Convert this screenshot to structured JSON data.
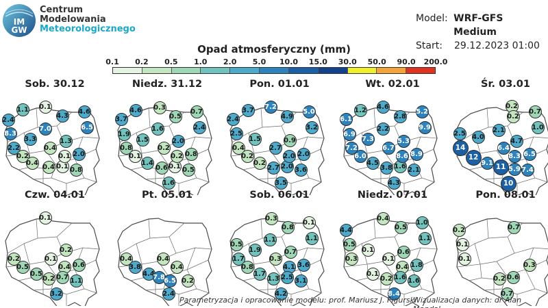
{
  "header": {
    "org_lines": [
      "Centrum",
      "Modelowania",
      "Meteorologicznego"
    ],
    "logo_text": [
      "IM",
      "GW"
    ],
    "model_label": "Model:",
    "model_value": "WRF-GFS Medium",
    "start_label": "Start:",
    "start_value": "29.12.2023 01:00"
  },
  "title": "Opad atmosferyczny (mm)",
  "scale": {
    "ticks": [
      "0.1",
      "0.2",
      "0.5",
      "1.0",
      "2.0",
      "5.0",
      "10.0",
      "15.0",
      "30.0",
      "50.0",
      "90.0",
      "200.0"
    ],
    "colors": [
      "#e4f3e2",
      "#c3e6c1",
      "#9fd6b5",
      "#72c3bd",
      "#4eaacb",
      "#2f83bd",
      "#1b5fa5",
      "#12428a",
      "#eef02c",
      "#f2a33a",
      "#e0331f"
    ]
  },
  "colors": {
    "map_fill": "#ffffff",
    "map_border": "#4a4a4a"
  },
  "panels": [
    {
      "day": "Sob. 30.12",
      "stations": [
        {
          "v": "1.1",
          "x": 33,
          "y": 43
        },
        {
          "v": "0.1",
          "x": 66,
          "y": 39
        },
        {
          "v": "4.3",
          "x": 91,
          "y": 52
        },
        {
          "v": "4.6",
          "x": 123,
          "y": 46
        },
        {
          "v": "2.4",
          "x": 12,
          "y": 58
        },
        {
          "v": "6.5",
          "x": 127,
          "y": 69
        },
        {
          "v": "8.3",
          "x": 15,
          "y": 78
        },
        {
          "v": "3.3",
          "x": 44,
          "y": 86
        },
        {
          "v": "7.0",
          "x": 66,
          "y": 71
        },
        {
          "v": "1.3",
          "x": 96,
          "y": 89
        },
        {
          "v": "2.2",
          "x": 20,
          "y": 99
        },
        {
          "v": "0.4",
          "x": 73,
          "y": 99
        },
        {
          "v": "2.0",
          "x": 115,
          "y": 108
        },
        {
          "v": "0.2",
          "x": 33,
          "y": 111
        },
        {
          "v": "0.4",
          "x": 47,
          "y": 121
        },
        {
          "v": "0.4",
          "x": 71,
          "y": 127
        },
        {
          "v": "0.1",
          "x": 91,
          "y": 126
        },
        {
          "v": "0.8",
          "x": 111,
          "y": 131
        },
        {
          "v": "0.1",
          "x": 94,
          "y": 111
        }
      ]
    },
    {
      "day": "Niedz. 31.12",
      "stations": [
        {
          "v": "4.6",
          "x": 34,
          "y": 44
        },
        {
          "v": "0.3",
          "x": 69,
          "y": 40
        },
        {
          "v": "0.5",
          "x": 92,
          "y": 53
        },
        {
          "v": "0.7",
          "x": 123,
          "y": 46
        },
        {
          "v": "3.7",
          "x": 13,
          "y": 57
        },
        {
          "v": "2.4",
          "x": 127,
          "y": 69
        },
        {
          "v": "1.9",
          "x": 17,
          "y": 79
        },
        {
          "v": "1.5",
          "x": 44,
          "y": 87
        },
        {
          "v": "1.6",
          "x": 66,
          "y": 71
        },
        {
          "v": "2.0",
          "x": 96,
          "y": 89
        },
        {
          "v": "0.8",
          "x": 20,
          "y": 99
        },
        {
          "v": "0.2",
          "x": 75,
          "y": 99
        },
        {
          "v": "0.8",
          "x": 115,
          "y": 108
        },
        {
          "v": "0.1",
          "x": 33,
          "y": 111
        },
        {
          "v": "1.4",
          "x": 51,
          "y": 121
        },
        {
          "v": "0.6",
          "x": 72,
          "y": 128
        },
        {
          "v": "0.1",
          "x": 91,
          "y": 126
        },
        {
          "v": "0.5",
          "x": 111,
          "y": 131
        },
        {
          "v": "1.6",
          "x": 82,
          "y": 150
        },
        {
          "v": "0.2",
          "x": 94,
          "y": 111
        }
      ]
    },
    {
      "day": "Pon. 01.01",
      "stations": [
        {
          "v": "3.7",
          "x": 34,
          "y": 44
        },
        {
          "v": "7.2",
          "x": 67,
          "y": 39
        },
        {
          "v": "4.9",
          "x": 91,
          "y": 53
        },
        {
          "v": "5.0",
          "x": 123,
          "y": 46
        },
        {
          "v": "2.4",
          "x": 12,
          "y": 57
        },
        {
          "v": "3.2",
          "x": 127,
          "y": 69
        },
        {
          "v": "2.5",
          "x": 17,
          "y": 78
        },
        {
          "v": "1.5",
          "x": 44,
          "y": 86
        },
        {
          "v": "0.9",
          "x": 95,
          "y": 88
        },
        {
          "v": "0.4",
          "x": 20,
          "y": 99
        },
        {
          "v": "2.7",
          "x": 74,
          "y": 99
        },
        {
          "v": "2.0",
          "x": 115,
          "y": 108
        },
        {
          "v": "0.2",
          "x": 33,
          "y": 111
        },
        {
          "v": "0.2",
          "x": 51,
          "y": 121
        },
        {
          "v": "2.7",
          "x": 71,
          "y": 128
        },
        {
          "v": "2.0",
          "x": 91,
          "y": 126
        },
        {
          "v": "3.6",
          "x": 111,
          "y": 131
        },
        {
          "v": "3.5",
          "x": 82,
          "y": 150
        },
        {
          "v": "2.0",
          "x": 94,
          "y": 111
        }
      ]
    },
    {
      "day": "Wt. 02.01",
      "stations": [
        {
          "v": "1.2",
          "x": 33,
          "y": 44
        },
        {
          "v": "4.6",
          "x": 66,
          "y": 39
        },
        {
          "v": "2.8",
          "x": 91,
          "y": 53
        },
        {
          "v": "5.2",
          "x": 123,
          "y": 46
        },
        {
          "v": "6.1",
          "x": 12,
          "y": 57
        },
        {
          "v": "9.9",
          "x": 127,
          "y": 69
        },
        {
          "v": "6.9",
          "x": 17,
          "y": 79
        },
        {
          "v": "7.3",
          "x": 44,
          "y": 86
        },
        {
          "v": "2.2",
          "x": 66,
          "y": 71
        },
        {
          "v": "5.3",
          "x": 96,
          "y": 89
        },
        {
          "v": "7.2",
          "x": 20,
          "y": 99
        },
        {
          "v": "6.7",
          "x": 74,
          "y": 99
        },
        {
          "v": "8.9",
          "x": 115,
          "y": 108
        },
        {
          "v": "6.0",
          "x": 33,
          "y": 111
        },
        {
          "v": "4.5",
          "x": 51,
          "y": 121
        },
        {
          "v": "3.8",
          "x": 71,
          "y": 128
        },
        {
          "v": "1.6",
          "x": 91,
          "y": 126
        },
        {
          "v": "2.1",
          "x": 111,
          "y": 131
        },
        {
          "v": "4.3",
          "x": 82,
          "y": 150
        },
        {
          "v": "8.6",
          "x": 94,
          "y": 111
        }
      ]
    },
    {
      "day": "Śr. 03.01",
      "stations": [
        {
          "v": "0.2",
          "x": 89,
          "y": 38
        },
        {
          "v": "0.7",
          "x": 123,
          "y": 46
        },
        {
          "v": "0.2",
          "x": 91,
          "y": 53
        },
        {
          "v": "1.0",
          "x": 127,
          "y": 69
        },
        {
          "v": "2.5",
          "x": 13,
          "y": 78
        },
        {
          "v": "4.0",
          "x": 40,
          "y": 83
        },
        {
          "v": "2.1",
          "x": 70,
          "y": 73
        },
        {
          "v": "4.7",
          "x": 96,
          "y": 89
        },
        {
          "v": "14",
          "x": 14,
          "y": 99,
          "big": true
        },
        {
          "v": "6.4",
          "x": 77,
          "y": 99
        },
        {
          "v": "12",
          "x": 33,
          "y": 113,
          "big": true
        },
        {
          "v": "8.3",
          "x": 93,
          "y": 111
        },
        {
          "v": "6.5",
          "x": 115,
          "y": 108
        },
        {
          "v": "9.1",
          "x": 53,
          "y": 121
        },
        {
          "v": "11",
          "x": 73,
          "y": 127,
          "big": true
        },
        {
          "v": "5.9",
          "x": 93,
          "y": 130
        },
        {
          "v": "7.4",
          "x": 112,
          "y": 131
        },
        {
          "v": "10",
          "x": 84,
          "y": 151,
          "big": true
        }
      ]
    },
    {
      "day": "Czw. 04.01",
      "stations": [
        {
          "v": "0.1",
          "x": 66,
          "y": 39
        },
        {
          "v": "0.2",
          "x": 96,
          "y": 86
        },
        {
          "v": "0.2",
          "x": 20,
          "y": 99
        },
        {
          "v": "0.1",
          "x": 74,
          "y": 99
        },
        {
          "v": "0.5",
          "x": 33,
          "y": 111
        },
        {
          "v": "0.6",
          "x": 115,
          "y": 108
        },
        {
          "v": "0.4",
          "x": 94,
          "y": 111
        },
        {
          "v": "0.5",
          "x": 53,
          "y": 121
        },
        {
          "v": "0.2",
          "x": 71,
          "y": 128
        },
        {
          "v": "0.7",
          "x": 91,
          "y": 126
        },
        {
          "v": "1.1",
          "x": 111,
          "y": 131
        },
        {
          "v": "3.2",
          "x": 82,
          "y": 150
        }
      ]
    },
    {
      "day": "Pt. 05.01",
      "stations": [
        {
          "v": "0.4",
          "x": 20,
          "y": 99
        },
        {
          "v": "0.4",
          "x": 74,
          "y": 99
        },
        {
          "v": "3.8",
          "x": 33,
          "y": 111
        },
        {
          "v": "0.4",
          "x": 94,
          "y": 111
        },
        {
          "v": "4.4",
          "x": 53,
          "y": 121
        },
        {
          "v": "7.8",
          "x": 68,
          "y": 126
        },
        {
          "v": "6.5",
          "x": 84,
          "y": 131
        },
        {
          "v": "0.2",
          "x": 110,
          "y": 131
        },
        {
          "v": "2.4",
          "x": 82,
          "y": 150
        }
      ]
    },
    {
      "day": "Sob. 06.01",
      "stations": [
        {
          "v": "0.3",
          "x": 68,
          "y": 40
        },
        {
          "v": "0.8",
          "x": 92,
          "y": 53
        },
        {
          "v": "0.1",
          "x": 123,
          "y": 46
        },
        {
          "v": "1.1",
          "x": 66,
          "y": 71
        },
        {
          "v": "1.1",
          "x": 127,
          "y": 69
        },
        {
          "v": "0.5",
          "x": 17,
          "y": 78
        },
        {
          "v": "1.9",
          "x": 44,
          "y": 86
        },
        {
          "v": "0.7",
          "x": 96,
          "y": 89
        },
        {
          "v": "1.7",
          "x": 20,
          "y": 99
        },
        {
          "v": "0.3",
          "x": 74,
          "y": 99
        },
        {
          "v": "3.6",
          "x": 115,
          "y": 108
        },
        {
          "v": "0.8",
          "x": 33,
          "y": 111
        },
        {
          "v": "4.1",
          "x": 94,
          "y": 111
        },
        {
          "v": "1.7",
          "x": 51,
          "y": 121
        },
        {
          "v": "1.3",
          "x": 71,
          "y": 128
        },
        {
          "v": "2.5",
          "x": 91,
          "y": 126
        },
        {
          "v": "3.1",
          "x": 111,
          "y": 131
        },
        {
          "v": "4.2",
          "x": 82,
          "y": 150
        }
      ]
    },
    {
      "day": "Niedz. 07.01",
      "stations": [
        {
          "v": "4.4",
          "x": 12,
          "y": 57
        },
        {
          "v": "0.4",
          "x": 66,
          "y": 40
        },
        {
          "v": "1.0",
          "x": 123,
          "y": 46
        },
        {
          "v": "0.5",
          "x": 92,
          "y": 53
        },
        {
          "v": "1.1",
          "x": 127,
          "y": 69
        },
        {
          "v": "0.5",
          "x": 17,
          "y": 78
        },
        {
          "v": "0.1",
          "x": 44,
          "y": 86
        },
        {
          "v": "0.6",
          "x": 96,
          "y": 89
        },
        {
          "v": "0.3",
          "x": 20,
          "y": 99
        },
        {
          "v": "0.1",
          "x": 74,
          "y": 99
        },
        {
          "v": "1.8",
          "x": 115,
          "y": 108
        },
        {
          "v": "0.4",
          "x": 94,
          "y": 111
        },
        {
          "v": "0.1",
          "x": 51,
          "y": 121
        },
        {
          "v": "0.2",
          "x": 71,
          "y": 128
        },
        {
          "v": "1.6",
          "x": 91,
          "y": 126
        },
        {
          "v": "1.6",
          "x": 111,
          "y": 131
        },
        {
          "v": "8.4",
          "x": 82,
          "y": 150
        }
      ]
    },
    {
      "day": "Pon. 08.01",
      "stations": [
        {
          "v": "0.2",
          "x": 12,
          "y": 57
        },
        {
          "v": "0.7",
          "x": 92,
          "y": 53
        },
        {
          "v": "0.1",
          "x": 17,
          "y": 78
        },
        {
          "v": "0.1",
          "x": 20,
          "y": 99
        },
        {
          "v": "0.3",
          "x": 115,
          "y": 108
        },
        {
          "v": "0.2",
          "x": 71,
          "y": 128
        },
        {
          "v": "0.6",
          "x": 91,
          "y": 126
        },
        {
          "v": "0.7",
          "x": 82,
          "y": 150
        }
      ]
    }
  ],
  "credits": {
    "left": "Parametryzacja i opracowanie modelu: prof. Mariusz J. Figurski",
    "right": "Wizualizacja danych: dr Alan Mandal"
  }
}
